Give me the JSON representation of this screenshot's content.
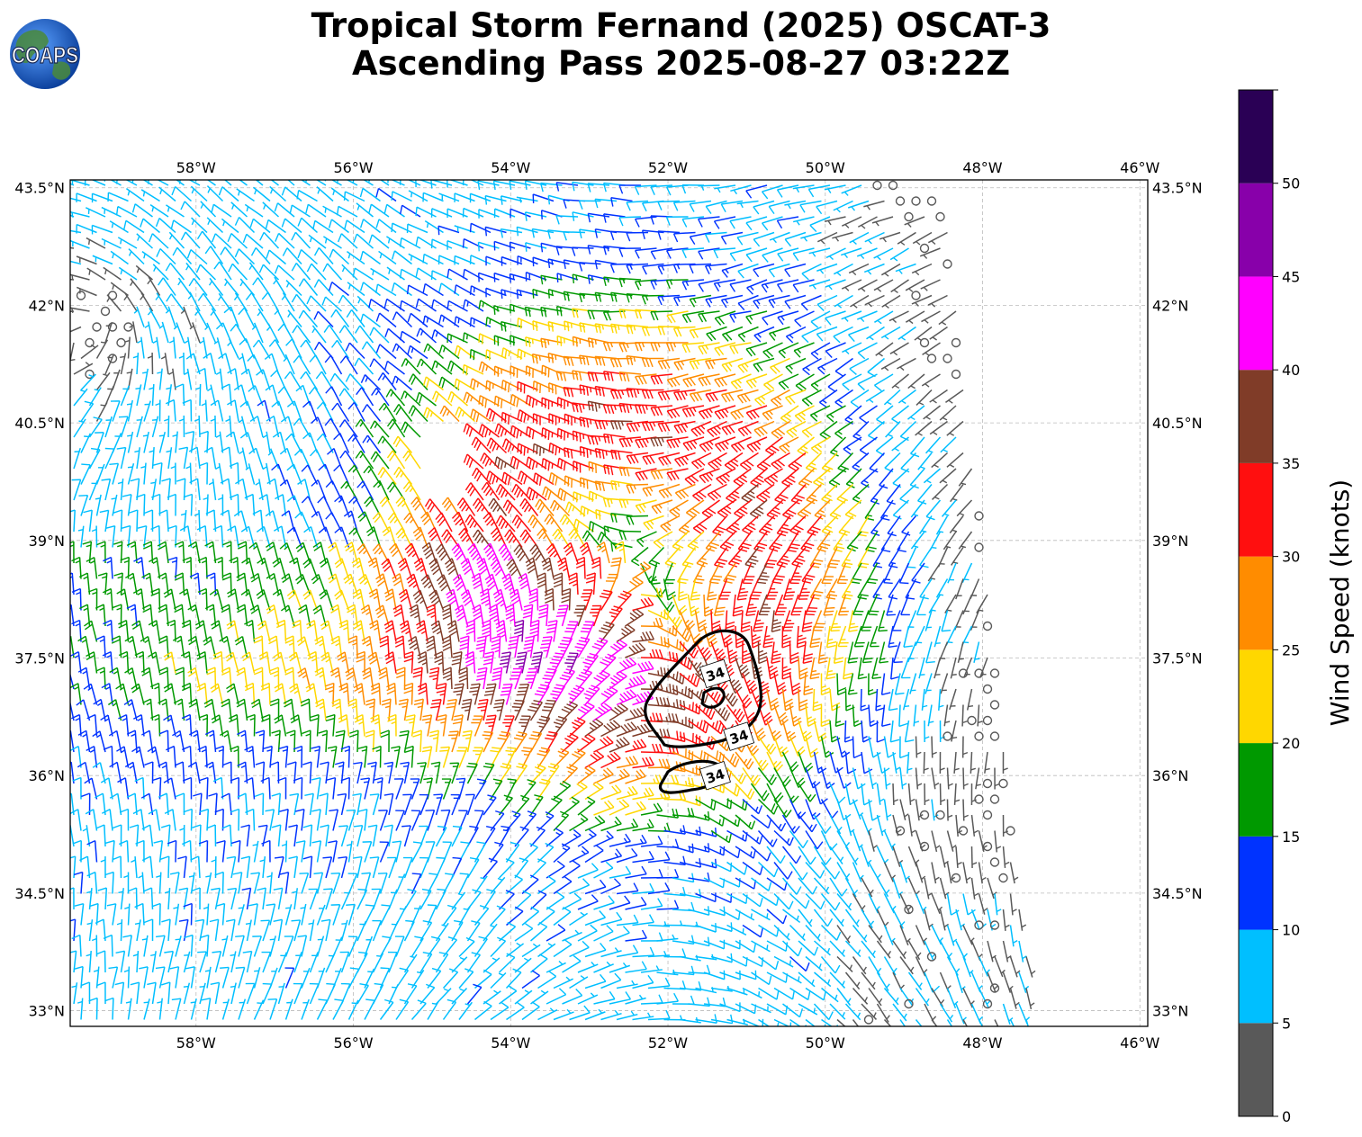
{
  "title": {
    "line1": "Tropical Storm Fernand (2025) OSCAT-3",
    "line2": "Ascending Pass 2025-08-27 03:22Z"
  },
  "logo": {
    "text": "COAPS",
    "icon": "globe-icon"
  },
  "map": {
    "lon_range": [
      -59.6,
      -45.9
    ],
    "lat_range": [
      32.8,
      43.6
    ],
    "lon_ticks": [
      "58°W",
      "56°W",
      "54°W",
      "52°W",
      "50°W",
      "48°W",
      "46°W"
    ],
    "lon_tick_values": [
      -58,
      -56,
      -54,
      -52,
      -50,
      -48,
      -46
    ],
    "lat_ticks": [
      "43.5°N",
      "42°N",
      "40.5°N",
      "39°N",
      "37.5°N",
      "36°N",
      "34.5°N",
      "33°N"
    ],
    "lat_tick_values": [
      43.5,
      42,
      40.5,
      39,
      37.5,
      36,
      34.5,
      33
    ],
    "gridlines": true,
    "storm_center": {
      "lon": -52.4,
      "lat": 38.8
    },
    "swath_edge_lon": -48.8
  },
  "contour": {
    "label": "34",
    "labels": [
      {
        "text": "34",
        "lon": -51.4,
        "lat": 37.3
      },
      {
        "text": "34",
        "lon": -51.1,
        "lat": 36.5
      },
      {
        "text": "34",
        "lon": -51.4,
        "lat": 36.0
      }
    ]
  },
  "colorbar": {
    "label": "Wind Speed (knots)",
    "ticks": [
      "0",
      "5",
      "10",
      "15",
      "20",
      "25",
      "30",
      "35",
      "40",
      "45",
      "50"
    ],
    "bins": [
      {
        "min": 0,
        "max": 5,
        "color": "#595959"
      },
      {
        "min": 5,
        "max": 10,
        "color": "#00bfff"
      },
      {
        "min": 10,
        "max": 15,
        "color": "#0033ff"
      },
      {
        "min": 15,
        "max": 20,
        "color": "#009900"
      },
      {
        "min": 20,
        "max": 25,
        "color": "#ffd700"
      },
      {
        "min": 25,
        "max": 30,
        "color": "#ff8c00"
      },
      {
        "min": 30,
        "max": 35,
        "color": "#ff0f0f"
      },
      {
        "min": 35,
        "max": 40,
        "color": "#803c28"
      },
      {
        "min": 40,
        "max": 45,
        "color": "#ff00ff"
      },
      {
        "min": 45,
        "max": 50,
        "color": "#8800aa"
      },
      {
        "min": 50,
        "max": 55,
        "color": "#2a0055"
      }
    ]
  }
}
